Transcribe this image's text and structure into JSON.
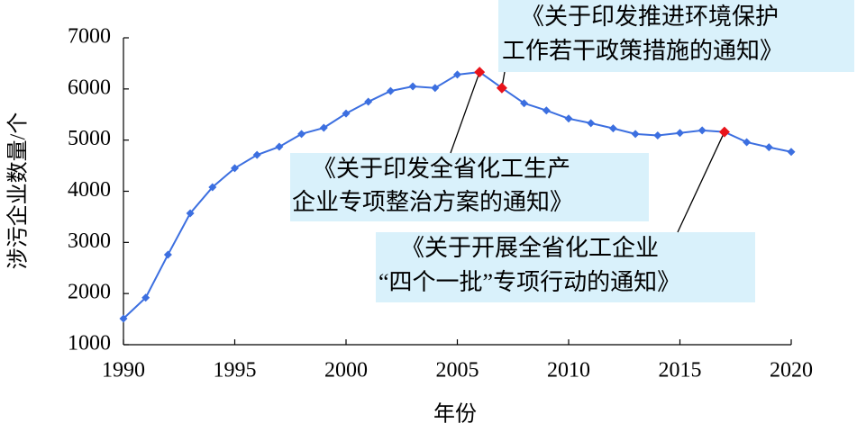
{
  "chart_data": {
    "type": "line",
    "ylabel": "涉污企业数量/个",
    "xlabel": "年份",
    "x": [
      1990,
      1991,
      1992,
      1993,
      1994,
      1995,
      1996,
      1997,
      1998,
      1999,
      2000,
      2001,
      2002,
      2003,
      2004,
      2005,
      2006,
      2007,
      2008,
      2009,
      2010,
      2011,
      2012,
      2013,
      2014,
      2015,
      2016,
      2017,
      2018,
      2019,
      2020
    ],
    "series": [
      {
        "name": "涉污企业数量",
        "color": "#3c6fe0",
        "values": [
          1510,
          1920,
          2760,
          3570,
          4080,
          4450,
          4710,
          4870,
          5120,
          5240,
          5520,
          5750,
          5960,
          6050,
          6020,
          6280,
          6330,
          6020,
          5720,
          5580,
          5420,
          5330,
          5230,
          5120,
          5090,
          5140,
          5190,
          5160,
          4960,
          4860,
          4770
        ]
      }
    ],
    "xlim": [
      1990,
      2020
    ],
    "xticks": [
      1990,
      1995,
      2000,
      2005,
      2010,
      2015,
      2020
    ],
    "ylim": [
      1000,
      7000
    ],
    "yticks": [
      1000,
      2000,
      3000,
      4000,
      5000,
      6000,
      7000
    ],
    "highlight_color": "#e8141b",
    "annotation_bg": "#d9f1fb",
    "annotations": [
      {
        "x": 2007,
        "lines": [
          "《关于印发推进环境保护",
          "工作若干政策措施的通知》"
        ]
      },
      {
        "x": 2006,
        "lines": [
          "《关于印发全省化工生产",
          "企业专项整治方案的通知》"
        ]
      },
      {
        "x": 2017,
        "lines": [
          "《关于开展全省化工企业",
          "“四个一批”专项行动的通知》"
        ]
      }
    ]
  }
}
